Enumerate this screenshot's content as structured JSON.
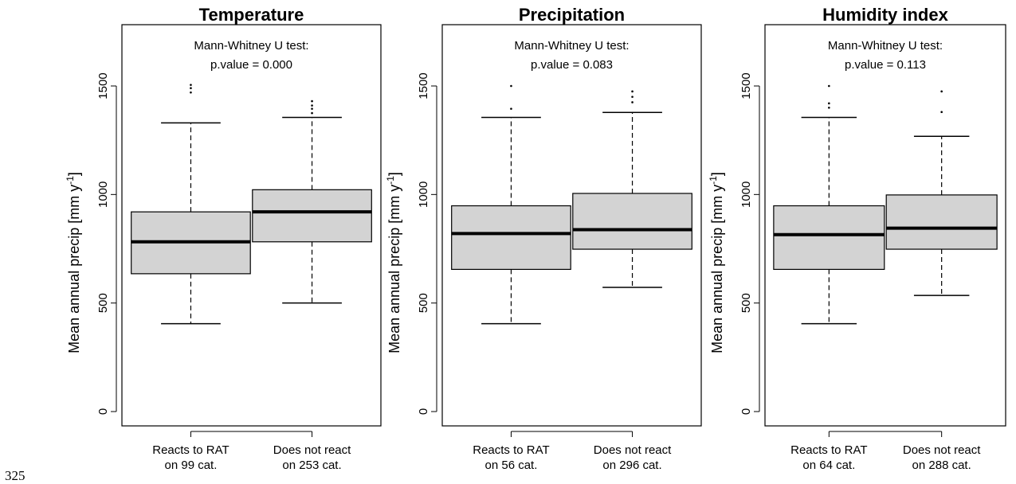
{
  "page_number": "325",
  "chart_data": [
    {
      "type": "boxplot",
      "title": "Temperature",
      "annotation_line1": "Mann-Whitney U test:",
      "annotation_line2": "p.value = 0.000",
      "ylabel_main": "Mean annual precip [mm y",
      "ylabel_sup": "-1",
      "ylabel_close": "]",
      "ylim": [
        0,
        1780
      ],
      "yticks": [
        "0",
        "500",
        "1000",
        "1500"
      ],
      "categories": [
        {
          "line1": "Reacts to RAT",
          "line2": "on 99 cat."
        },
        {
          "line1": "Does not react",
          "line2": "on 253 cat."
        }
      ],
      "boxes": [
        {
          "whisker_low": 405,
          "q1": 635,
          "median": 782,
          "q3": 920,
          "whisker_high": 1330,
          "outliers": [
            1470,
            1490,
            1505
          ]
        },
        {
          "whisker_low": 500,
          "q1": 782,
          "median": 920,
          "q3": 1022,
          "whisker_high": 1355,
          "outliers": [
            1375,
            1395,
            1410,
            1430
          ]
        }
      ]
    },
    {
      "type": "boxplot",
      "title": "Precipitation",
      "annotation_line1": "Mann-Whitney U test:",
      "annotation_line2": "p.value = 0.083",
      "ylabel_main": "Mean annual precip [mm y",
      "ylabel_sup": "-1",
      "ylabel_close": "]",
      "ylim": [
        0,
        1780
      ],
      "yticks": [
        "0",
        "500",
        "1000",
        "1500"
      ],
      "categories": [
        {
          "line1": "Reacts to RAT",
          "line2": "on 56 cat."
        },
        {
          "line1": "Does not react",
          "line2": "on 296 cat."
        }
      ],
      "boxes": [
        {
          "whisker_low": 405,
          "q1": 655,
          "median": 820,
          "q3": 948,
          "whisker_high": 1355,
          "outliers": [
            1395,
            1500
          ]
        },
        {
          "whisker_low": 572,
          "q1": 748,
          "median": 838,
          "q3": 1005,
          "whisker_high": 1378,
          "outliers": [
            1425,
            1450,
            1475
          ]
        }
      ]
    },
    {
      "type": "boxplot",
      "title": "Humidity index",
      "annotation_line1": "Mann-Whitney U test:",
      "annotation_line2": "p.value = 0.113",
      "ylabel_main": "Mean annual precip [mm y",
      "ylabel_sup": "-1",
      "ylabel_close": "]",
      "ylim": [
        0,
        1780
      ],
      "yticks": [
        "0",
        "500",
        "1000",
        "1500"
      ],
      "categories": [
        {
          "line1": "Reacts to RAT",
          "line2": "on 64 cat."
        },
        {
          "line1": "Does not react",
          "line2": "on 288 cat."
        }
      ],
      "boxes": [
        {
          "whisker_low": 405,
          "q1": 655,
          "median": 815,
          "q3": 948,
          "whisker_high": 1355,
          "outliers": [
            1400,
            1420,
            1500
          ]
        },
        {
          "whisker_low": 535,
          "q1": 748,
          "median": 845,
          "q3": 998,
          "whisker_high": 1268,
          "outliers": [
            1380,
            1475
          ]
        }
      ]
    }
  ]
}
